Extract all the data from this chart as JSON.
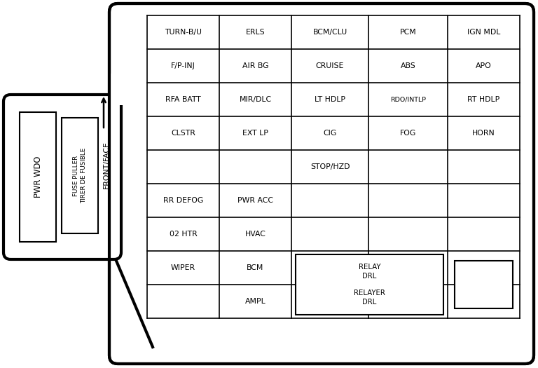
{
  "bg_color": "#ffffff",
  "line_color": "#000000",
  "text_color": "#000000",
  "font_size": 7.8,
  "cells": [
    {
      "row": 0,
      "col": 0,
      "text": "TURN-B/U"
    },
    {
      "row": 0,
      "col": 1,
      "text": "ERLS"
    },
    {
      "row": 0,
      "col": 2,
      "text": "BCM/CLU"
    },
    {
      "row": 0,
      "col": 3,
      "text": "PCM"
    },
    {
      "row": 0,
      "col": 4,
      "text": "IGN MDL"
    },
    {
      "row": 1,
      "col": 0,
      "text": "F/P-INJ"
    },
    {
      "row": 1,
      "col": 1,
      "text": "AIR BG"
    },
    {
      "row": 1,
      "col": 2,
      "text": "CRUISE"
    },
    {
      "row": 1,
      "col": 3,
      "text": "ABS"
    },
    {
      "row": 1,
      "col": 4,
      "text": "APO"
    },
    {
      "row": 2,
      "col": 0,
      "text": "RFA BATT"
    },
    {
      "row": 2,
      "col": 1,
      "text": "MIR/DLC"
    },
    {
      "row": 2,
      "col": 2,
      "text": "LT HDLP"
    },
    {
      "row": 2,
      "col": 3,
      "text": "RDO/INTLP"
    },
    {
      "row": 2,
      "col": 4,
      "text": "RT HDLP"
    },
    {
      "row": 3,
      "col": 0,
      "text": "CLSTR"
    },
    {
      "row": 3,
      "col": 1,
      "text": "EXT LP"
    },
    {
      "row": 3,
      "col": 2,
      "text": "CIG"
    },
    {
      "row": 3,
      "col": 3,
      "text": "FOG"
    },
    {
      "row": 3,
      "col": 4,
      "text": "HORN"
    },
    {
      "row": 4,
      "col": 0,
      "text": ""
    },
    {
      "row": 4,
      "col": 1,
      "text": ""
    },
    {
      "row": 4,
      "col": 2,
      "text": "STOP/HZD"
    },
    {
      "row": 4,
      "col": 3,
      "text": ""
    },
    {
      "row": 4,
      "col": 4,
      "text": ""
    },
    {
      "row": 5,
      "col": 0,
      "text": "RR DEFOG"
    },
    {
      "row": 5,
      "col": 1,
      "text": "PWR ACC"
    },
    {
      "row": 5,
      "col": 2,
      "text": ""
    },
    {
      "row": 5,
      "col": 3,
      "text": ""
    },
    {
      "row": 5,
      "col": 4,
      "text": ""
    },
    {
      "row": 6,
      "col": 0,
      "text": "02 HTR"
    },
    {
      "row": 6,
      "col": 1,
      "text": "HVAC"
    },
    {
      "row": 6,
      "col": 2,
      "text": ""
    },
    {
      "row": 6,
      "col": 3,
      "text": ""
    },
    {
      "row": 6,
      "col": 4,
      "text": ""
    },
    {
      "row": 7,
      "col": 0,
      "text": "WIPER"
    },
    {
      "row": 7,
      "col": 1,
      "text": "BCM"
    },
    {
      "row": 7,
      "col": 2,
      "text": ""
    },
    {
      "row": 7,
      "col": 3,
      "text": ""
    },
    {
      "row": 7,
      "col": 4,
      "text": ""
    },
    {
      "row": 8,
      "col": 0,
      "text": ""
    },
    {
      "row": 8,
      "col": 1,
      "text": "AMPL"
    },
    {
      "row": 8,
      "col": 2,
      "text": ""
    },
    {
      "row": 8,
      "col": 3,
      "text": ""
    },
    {
      "row": 8,
      "col": 4,
      "text": ""
    }
  ],
  "relay_text": "RELAY\nDRL\n\nRELAYER\nDRL",
  "pwr_wdo_text": "PWR WDO",
  "fuse_puller_text": "FUSE PULLER\nTIRER DE FUSIBLE",
  "front_face_text": "FRONT/FACE"
}
